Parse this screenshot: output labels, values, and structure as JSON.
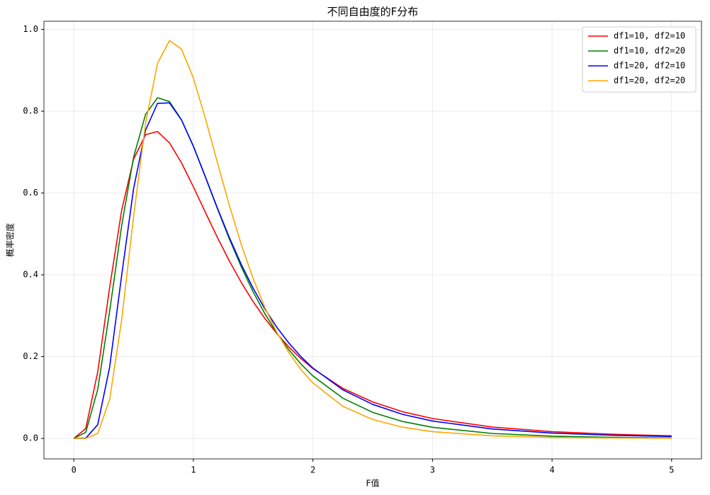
{
  "chart_data": {
    "type": "line",
    "title": "不同自由度的F分布",
    "x_label": "F值",
    "y_label": "概率密度",
    "x": [
      0,
      0.1,
      0.2,
      0.3,
      0.4,
      0.5,
      0.6,
      0.7,
      0.8,
      0.9,
      1.0,
      1.1,
      1.2,
      1.3,
      1.4,
      1.5,
      1.6,
      1.7,
      1.8,
      1.9,
      2.0,
      2.25,
      2.5,
      2.75,
      3.0,
      3.5,
      4.0,
      4.5,
      5.0
    ],
    "series": [
      {
        "name": "df1=10, df2=10",
        "color": "#ff0000",
        "values": [
          0,
          0.0243,
          0.1628,
          0.37,
          0.5576,
          0.6828,
          0.7426,
          0.7503,
          0.7227,
          0.6742,
          0.6152,
          0.553,
          0.4919,
          0.4343,
          0.3817,
          0.3344,
          0.2925,
          0.2556,
          0.2233,
          0.1951,
          0.1707,
          0.1225,
          0.0892,
          0.0653,
          0.0487,
          0.0278,
          0.0165,
          0.0102,
          0.0065
        ]
      },
      {
        "name": "df1=10, df2=20",
        "color": "#008000",
        "values": [
          0,
          0.0151,
          0.1198,
          0.3114,
          0.5198,
          0.6878,
          0.792,
          0.833,
          0.8236,
          0.7793,
          0.7143,
          0.6396,
          0.5626,
          0.4883,
          0.4199,
          0.3582,
          0.3039,
          0.2567,
          0.2163,
          0.1818,
          0.1527,
          0.0984,
          0.0637,
          0.0414,
          0.0272,
          0.0121,
          0.0056,
          0.0027,
          0.0014
        ]
      },
      {
        "name": "df1=20, df2=10",
        "color": "#0000ff",
        "values": [
          0,
          0.0007,
          0.0337,
          0.175,
          0.3983,
          0.611,
          0.7536,
          0.8193,
          0.8203,
          0.779,
          0.7144,
          0.6398,
          0.5639,
          0.4917,
          0.4257,
          0.367,
          0.3156,
          0.271,
          0.2327,
          0.2,
          0.172,
          0.1188,
          0.0832,
          0.0589,
          0.0425,
          0.023,
          0.0131,
          0.0078,
          0.0048
        ]
      },
      {
        "name": "df1=20, df2=20",
        "color": "#ffa500",
        "values": [
          0,
          0.0001,
          0.0123,
          0.0957,
          0.2894,
          0.5426,
          0.7701,
          0.9172,
          0.9726,
          0.9521,
          0.881,
          0.7829,
          0.6757,
          0.5708,
          0.4748,
          0.3905,
          0.3186,
          0.2584,
          0.2089,
          0.1684,
          0.1356,
          0.0785,
          0.0463,
          0.0273,
          0.0165,
          0.0063,
          0.0025,
          0.0011,
          0.0005
        ]
      }
    ],
    "xlim": [
      -0.25,
      5.25
    ],
    "ylim": [
      -0.05,
      1.02
    ],
    "xticks": [
      0,
      1,
      2,
      3,
      4,
      5
    ],
    "yticks": [
      {
        "value": 0,
        "label": "0.0"
      },
      0.2,
      0.4,
      0.6,
      0.8,
      {
        "value": 1,
        "label": "1.0"
      }
    ],
    "grid": true,
    "legend": "upper-right"
  }
}
